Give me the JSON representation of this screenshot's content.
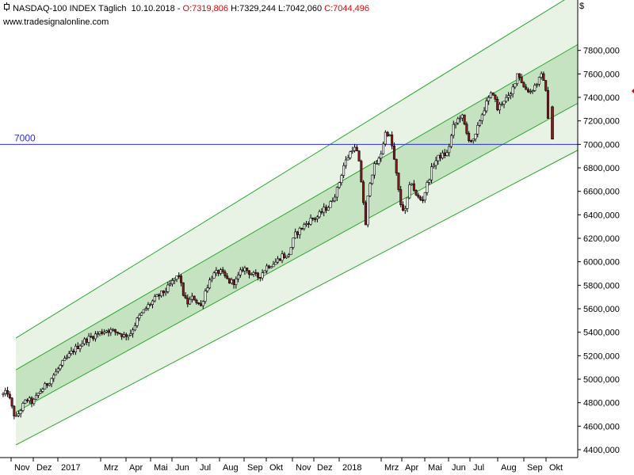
{
  "header": {
    "icon": "chart-bar-icon",
    "title": "NASDAQ-100 INDEX Täglich",
    "date": "10.10.2018",
    "sep": "-",
    "open": "O:7319,806",
    "high": "H:7329,244",
    "low": "L:7042,060",
    "close": "C:7044,496",
    "website": "www.tradesignalonline.com",
    "currency": "$"
  },
  "colors": {
    "background": "#ffffff",
    "channel_outer": "#e8f3e6",
    "channel_inner": "#c5e2c1",
    "channel_line": "#2da52d",
    "hline": "#2b2be6",
    "candle_up": "#ffffff",
    "candle_down": "#8b1a1a",
    "text_red": "#e00000"
  },
  "chart_data": {
    "type": "candlestick",
    "title": "NASDAQ-100 INDEX Täglich",
    "ylim": [
      4400,
      8000
    ],
    "y_ticks": [
      "4400,000",
      "4600,000",
      "4800,000",
      "5000,000",
      "5200,000",
      "5400,000",
      "5600,000",
      "5800,000",
      "6000,000",
      "6200,000",
      "6400,000",
      "6600,000",
      "6800,000",
      "7000,000",
      "7200,000",
      "7400,000",
      "7600,000",
      "7800,000"
    ],
    "x_labels": [
      "Nov",
      "Dez",
      "2017",
      "Mrz",
      "Apr",
      "Mai",
      "Jun",
      "Jul",
      "Aug",
      "Sep",
      "Okt",
      "Nov",
      "Dez",
      "2018",
      "Mrz",
      "Apr",
      "Mai",
      "Jun",
      "Jul",
      "Aug",
      "Sep",
      "Okt"
    ],
    "horizontal_line": {
      "label": "7000",
      "value": 7000
    },
    "channel": {
      "upper_outer": [
        5350,
        8300
      ],
      "upper_inner": [
        5080,
        7850
      ],
      "lower_inner": [
        4720,
        7350
      ],
      "lower_outer": [
        4440,
        6950
      ]
    },
    "last_ohlc": {
      "open": 7319.806,
      "high": 7329.244,
      "low": 7042.06,
      "close": 7044.496
    },
    "anchors": [
      {
        "t": 0,
        "v": 4870
      },
      {
        "t": 6,
        "v": 4890
      },
      {
        "t": 10,
        "v": 4780
      },
      {
        "t": 16,
        "v": 4660
      },
      {
        "t": 22,
        "v": 4740
      },
      {
        "t": 30,
        "v": 4830
      },
      {
        "t": 38,
        "v": 4800
      },
      {
        "t": 46,
        "v": 4890
      },
      {
        "t": 56,
        "v": 4960
      },
      {
        "t": 66,
        "v": 5050
      },
      {
        "t": 76,
        "v": 5140
      },
      {
        "t": 90,
        "v": 5250
      },
      {
        "t": 104,
        "v": 5330
      },
      {
        "t": 118,
        "v": 5380
      },
      {
        "t": 132,
        "v": 5420
      },
      {
        "t": 146,
        "v": 5400
      },
      {
        "t": 154,
        "v": 5370
      },
      {
        "t": 162,
        "v": 5390
      },
      {
        "t": 172,
        "v": 5520
      },
      {
        "t": 184,
        "v": 5620
      },
      {
        "t": 196,
        "v": 5700
      },
      {
        "t": 208,
        "v": 5760
      },
      {
        "t": 216,
        "v": 5830
      },
      {
        "t": 224,
        "v": 5890
      },
      {
        "t": 228,
        "v": 5760
      },
      {
        "t": 234,
        "v": 5640
      },
      {
        "t": 242,
        "v": 5700
      },
      {
        "t": 252,
        "v": 5620
      },
      {
        "t": 258,
        "v": 5760
      },
      {
        "t": 266,
        "v": 5880
      },
      {
        "t": 276,
        "v": 5920
      },
      {
        "t": 288,
        "v": 5830
      },
      {
        "t": 296,
        "v": 5830
      },
      {
        "t": 306,
        "v": 5950
      },
      {
        "t": 318,
        "v": 5890
      },
      {
        "t": 326,
        "v": 5870
      },
      {
        "t": 336,
        "v": 5960
      },
      {
        "t": 348,
        "v": 6000
      },
      {
        "t": 356,
        "v": 6060
      },
      {
        "t": 362,
        "v": 6030
      },
      {
        "t": 372,
        "v": 6230
      },
      {
        "t": 382,
        "v": 6300
      },
      {
        "t": 392,
        "v": 6360
      },
      {
        "t": 400,
        "v": 6380
      },
      {
        "t": 408,
        "v": 6440
      },
      {
        "t": 416,
        "v": 6480
      },
      {
        "t": 426,
        "v": 6620
      },
      {
        "t": 434,
        "v": 6820
      },
      {
        "t": 446,
        "v": 6980
      },
      {
        "t": 452,
        "v": 6920
      },
      {
        "t": 458,
        "v": 6600
      },
      {
        "t": 462,
        "v": 6300
      },
      {
        "t": 466,
        "v": 6650
      },
      {
        "t": 472,
        "v": 6800
      },
      {
        "t": 480,
        "v": 6880
      },
      {
        "t": 488,
        "v": 7120
      },
      {
        "t": 494,
        "v": 7050
      },
      {
        "t": 500,
        "v": 6800
      },
      {
        "t": 506,
        "v": 6500
      },
      {
        "t": 512,
        "v": 6420
      },
      {
        "t": 520,
        "v": 6700
      },
      {
        "t": 526,
        "v": 6560
      },
      {
        "t": 534,
        "v": 6520
      },
      {
        "t": 540,
        "v": 6650
      },
      {
        "t": 548,
        "v": 6830
      },
      {
        "t": 556,
        "v": 6900
      },
      {
        "t": 566,
        "v": 6920
      },
      {
        "t": 574,
        "v": 7150
      },
      {
        "t": 584,
        "v": 7260
      },
      {
        "t": 592,
        "v": 7060
      },
      {
        "t": 600,
        "v": 7020
      },
      {
        "t": 608,
        "v": 7220
      },
      {
        "t": 616,
        "v": 7350
      },
      {
        "t": 624,
        "v": 7450
      },
      {
        "t": 630,
        "v": 7300
      },
      {
        "t": 638,
        "v": 7380
      },
      {
        "t": 646,
        "v": 7400
      },
      {
        "t": 656,
        "v": 7620
      },
      {
        "t": 664,
        "v": 7480
      },
      {
        "t": 672,
        "v": 7450
      },
      {
        "t": 680,
        "v": 7520
      },
      {
        "t": 688,
        "v": 7600
      },
      {
        "t": 692,
        "v": 7420
      },
      {
        "t": 697,
        "v": 7050
      }
    ]
  }
}
